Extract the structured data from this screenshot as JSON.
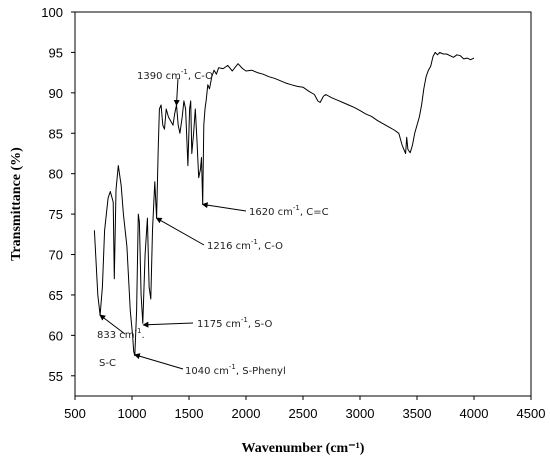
{
  "chart_data": {
    "type": "line",
    "title": "",
    "xlabel": "Wavenumber (cm⁻¹)",
    "ylabel": "Transmittance (%)",
    "xlim": [
      500,
      4500
    ],
    "ylim": [
      52.5,
      100
    ],
    "xticks": [
      500,
      1000,
      1500,
      2000,
      2500,
      3000,
      3500,
      4000,
      4500
    ],
    "yticks": [
      55,
      60,
      65,
      70,
      75,
      80,
      85,
      90,
      95,
      100
    ],
    "grid": false,
    "legend": "none",
    "series": [
      {
        "color": "#000000",
        "points": [
          [
            670,
            73
          ],
          [
            700,
            65
          ],
          [
            720,
            62.5
          ],
          [
            740,
            66
          ],
          [
            760,
            73
          ],
          [
            790,
            77
          ],
          [
            810,
            77.8
          ],
          [
            835,
            76.5
          ],
          [
            845,
            67
          ],
          [
            860,
            78
          ],
          [
            880,
            81
          ],
          [
            905,
            78.5
          ],
          [
            925,
            75
          ],
          [
            955,
            71
          ],
          [
            985,
            63
          ],
          [
            1005,
            60
          ],
          [
            1015,
            58
          ],
          [
            1025,
            57.5
          ],
          [
            1040,
            63
          ],
          [
            1055,
            75
          ],
          [
            1065,
            74
          ],
          [
            1080,
            65
          ],
          [
            1095,
            61.5
          ],
          [
            1115,
            70
          ],
          [
            1135,
            74.5
          ],
          [
            1150,
            66
          ],
          [
            1165,
            64.5
          ],
          [
            1180,
            73
          ],
          [
            1200,
            79
          ],
          [
            1216,
            74.5
          ],
          [
            1230,
            83
          ],
          [
            1240,
            88
          ],
          [
            1255,
            88.5
          ],
          [
            1270,
            86
          ],
          [
            1285,
            85.5
          ],
          [
            1300,
            88
          ],
          [
            1320,
            87
          ],
          [
            1340,
            86.5
          ],
          [
            1360,
            86
          ],
          [
            1375,
            87.5
          ],
          [
            1390,
            88.5
          ],
          [
            1405,
            86
          ],
          [
            1420,
            85
          ],
          [
            1440,
            87
          ],
          [
            1455,
            89
          ],
          [
            1470,
            88
          ],
          [
            1490,
            81
          ],
          [
            1505,
            88
          ],
          [
            1515,
            89
          ],
          [
            1525,
            82.5
          ],
          [
            1540,
            85
          ],
          [
            1555,
            88
          ],
          [
            1570,
            84
          ],
          [
            1585,
            79.5
          ],
          [
            1600,
            80.5
          ],
          [
            1610,
            82
          ],
          [
            1620,
            76.2
          ],
          [
            1630,
            86
          ],
          [
            1640,
            88
          ],
          [
            1650,
            89
          ],
          [
            1665,
            91
          ],
          [
            1680,
            90.5
          ],
          [
            1700,
            92
          ],
          [
            1720,
            92.8
          ],
          [
            1740,
            92.3
          ],
          [
            1760,
            93.1
          ],
          [
            1800,
            93
          ],
          [
            1840,
            93.4
          ],
          [
            1880,
            92.7
          ],
          [
            1930,
            93.6
          ],
          [
            1970,
            93
          ],
          [
            2000,
            92.7
          ],
          [
            2050,
            92.8
          ],
          [
            2100,
            92.5
          ],
          [
            2150,
            92.3
          ],
          [
            2200,
            92
          ],
          [
            2250,
            91.8
          ],
          [
            2300,
            91.5
          ],
          [
            2350,
            91.2
          ],
          [
            2400,
            91
          ],
          [
            2450,
            90.8
          ],
          [
            2500,
            90.7
          ],
          [
            2550,
            90.2
          ],
          [
            2600,
            89.8
          ],
          [
            2630,
            89
          ],
          [
            2650,
            88.8
          ],
          [
            2680,
            89.6
          ],
          [
            2700,
            89.8
          ],
          [
            2750,
            89.4
          ],
          [
            2800,
            89.1
          ],
          [
            2850,
            88.8
          ],
          [
            2900,
            88.5
          ],
          [
            2950,
            88.2
          ],
          [
            3000,
            87.8
          ],
          [
            3050,
            87.4
          ],
          [
            3100,
            87.1
          ],
          [
            3150,
            86.6
          ],
          [
            3200,
            86.2
          ],
          [
            3250,
            85.8
          ],
          [
            3300,
            85.4
          ],
          [
            3340,
            85
          ],
          [
            3370,
            83.5
          ],
          [
            3400,
            82.5
          ],
          [
            3410,
            84.5
          ],
          [
            3420,
            83
          ],
          [
            3440,
            82.6
          ],
          [
            3460,
            83.5
          ],
          [
            3480,
            85
          ],
          [
            3500,
            86
          ],
          [
            3520,
            87
          ],
          [
            3540,
            88.5
          ],
          [
            3560,
            90.5
          ],
          [
            3580,
            92
          ],
          [
            3600,
            92.8
          ],
          [
            3620,
            93.3
          ],
          [
            3640,
            94.5
          ],
          [
            3660,
            95
          ],
          [
            3680,
            94.7
          ],
          [
            3700,
            95
          ],
          [
            3730,
            94.8
          ],
          [
            3760,
            94.8
          ],
          [
            3790,
            94.6
          ],
          [
            3820,
            94.4
          ],
          [
            3850,
            94.7
          ],
          [
            3880,
            94.6
          ],
          [
            3910,
            94.2
          ],
          [
            3940,
            94.3
          ],
          [
            3970,
            94.1
          ],
          [
            4000,
            94.3
          ]
        ]
      }
    ],
    "annotations": [
      {
        "text": "1390 cm",
        "sup": "-1",
        "suffix": ", C-O",
        "point": [
          1390,
          88.5
        ]
      },
      {
        "text": "1620 cm",
        "sup": "-1",
        "suffix": ", C=C",
        "point": [
          1620,
          76.2
        ]
      },
      {
        "text": "1216 cm",
        "sup": "-1",
        "suffix": ", C-O",
        "point": [
          1216,
          74.5
        ]
      },
      {
        "text": "1175 cm",
        "sup": "-1",
        "suffix": ", S-O",
        "point": [
          1100,
          61.3
        ]
      },
      {
        "text": "1040 cm",
        "sup": "-1",
        "suffix": ", S-Phenyl",
        "point": [
          1025,
          57.6
        ]
      },
      {
        "text": "833 cm",
        "sup": "-1",
        "suffix": ".",
        "second_line": "S-C",
        "point": [
          720,
          62.5
        ]
      }
    ]
  }
}
